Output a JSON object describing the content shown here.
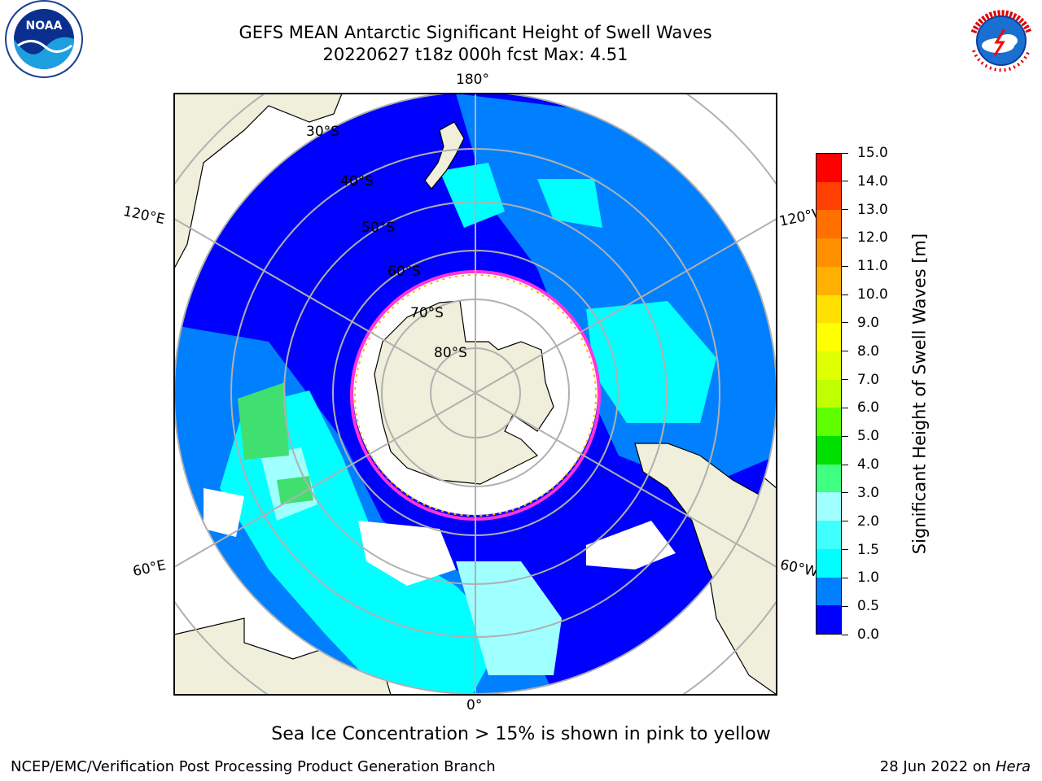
{
  "title": {
    "line1": "GEFS MEAN Antarctic Significant Height of Swell Waves",
    "line2": "20220627 t18z 000h fcst   Max: 4.51"
  },
  "map": {
    "projection": "south polar stereographic",
    "lon_labels": {
      "top": "180°",
      "bottom": "0°",
      "left_upper": "120°E",
      "left_lower": "60°E",
      "right_upper": "120°W",
      "right_lower": "60°W"
    },
    "lat_labels": [
      "30°S",
      "40°S",
      "50°S",
      "60°S",
      "70°S",
      "80°S"
    ],
    "colors": {
      "land": "#efefdb",
      "grid": "#b0b0b0",
      "ice_edge": "#ff33dd"
    }
  },
  "colorbar": {
    "title": "Significant Height of Swell Waves [m]",
    "ticks": [
      "0.0",
      "0.5",
      "1.0",
      "1.5",
      "2.0",
      "3.0",
      "4.0",
      "5.0",
      "6.0",
      "7.0",
      "8.0",
      "9.0",
      "10.0",
      "11.0",
      "12.0",
      "13.0",
      "14.0",
      "15.0"
    ],
    "colors": [
      "#0000ff",
      "#0080ff",
      "#00ffff",
      "#40ffff",
      "#a0ffff",
      "#40ff80",
      "#00e000",
      "#60ff00",
      "#c0ff00",
      "#e0ff00",
      "#ffff00",
      "#ffe000",
      "#ffb000",
      "#ff9000",
      "#ff7000",
      "#ff4000",
      "#ff0000"
    ]
  },
  "caption": "Sea Ice Concentration > 15% is shown in pink to yellow",
  "footer": {
    "credit": "NCEP/EMC/Verification Post Processing Product Generation Branch",
    "date_prefix": "28 Jun 2022 on ",
    "host": "Hera"
  },
  "logos": {
    "left": "NOAA",
    "right": "NATIONAL WEATHER SERVICE"
  }
}
